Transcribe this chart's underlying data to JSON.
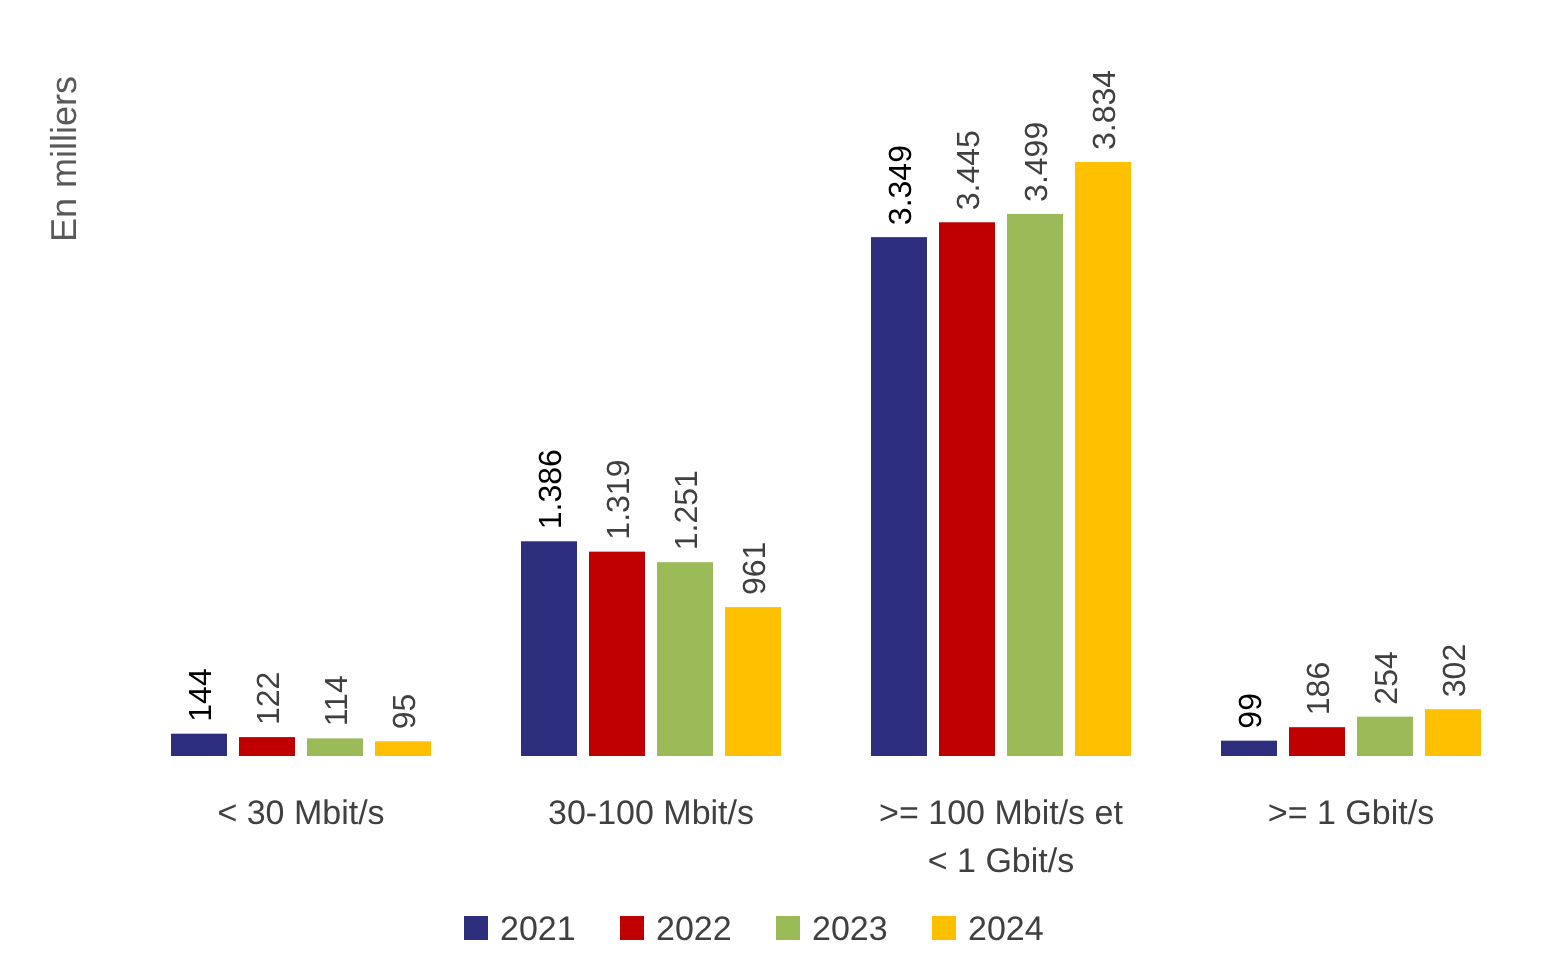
{
  "chart_data": {
    "type": "bar",
    "ylabel": "En milliers",
    "categories": [
      "< 30 Mbit/s",
      "30-100 Mbit/s",
      ">= 100 Mbit/s et < 1 Gbit/s",
      ">= 1 Gbit/s"
    ],
    "series": [
      {
        "name": "2021",
        "color": "#2e2e7e",
        "values": [
          144,
          1386,
          3349,
          99
        ],
        "value_labels": [
          "144",
          "1.386",
          "3.349",
          "99"
        ]
      },
      {
        "name": "2022",
        "color": "#c00000",
        "values": [
          122,
          1319,
          3445,
          186
        ],
        "value_labels": [
          "122",
          "1.319",
          "3.445",
          "186"
        ]
      },
      {
        "name": "2023",
        "color": "#9bbb59",
        "values": [
          114,
          1251,
          3499,
          254
        ],
        "value_labels": [
          "114",
          "1.251",
          "3.499",
          "254"
        ]
      },
      {
        "name": "2024",
        "color": "#ffc000",
        "values": [
          95,
          961,
          3834,
          302
        ],
        "value_labels": [
          "95",
          "961",
          "3.834",
          "302"
        ]
      }
    ],
    "legend": "bottom"
  }
}
